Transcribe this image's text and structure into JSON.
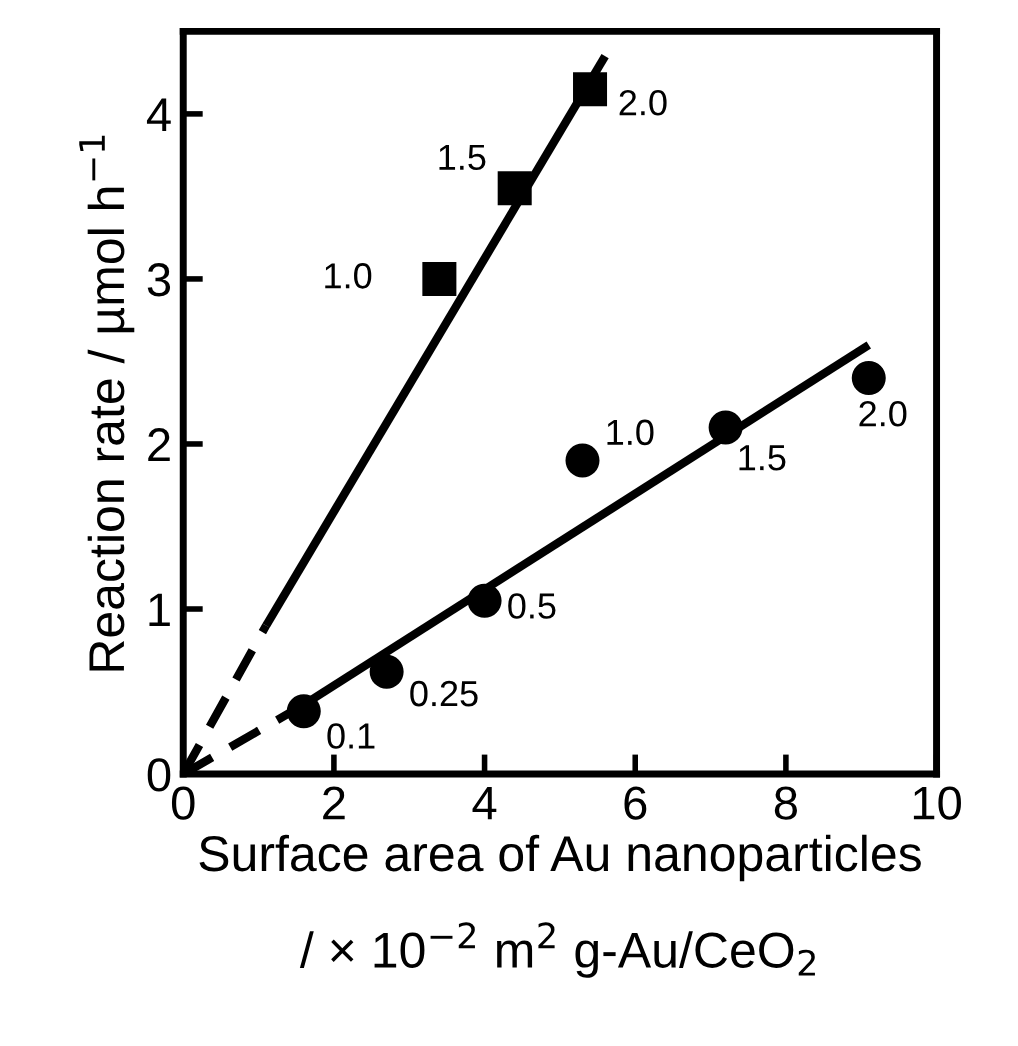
{
  "chart_data": {
    "type": "scatter",
    "xlabel": "Surface area of Au nanoparticles\n/ × 10$^{−2}$ m$^{2}$ g-Au/CeO$_{2}$",
    "ylabel": "Reaction rate / µmol h$^{−1}$",
    "xlim": [
      0,
      10
    ],
    "ylim": [
      0,
      4.5
    ],
    "xticks": [
      0,
      2,
      4,
      6,
      8,
      10
    ],
    "yticks": [
      0,
      1,
      2,
      3,
      4
    ],
    "grid": false,
    "legend": false,
    "series": [
      {
        "marker": "square",
        "color": "#000000",
        "x": [
          3.4,
          4.4,
          5.4
        ],
        "values": [
          3.0,
          3.55,
          4.15
        ]
      },
      {
        "marker": "circle",
        "color": "#000000",
        "x": [
          1.6,
          2.7,
          4.0,
          5.3,
          7.2,
          9.1
        ],
        "values": [
          0.38,
          0.62,
          1.05,
          1.9,
          2.1,
          2.4
        ]
      },
      {
        "type": "line",
        "marker": "none",
        "line_style": "solid",
        "color": "#000000",
        "x": [
          1.1,
          5.6
        ],
        "values": [
          0.9,
          4.35
        ]
      },
      {
        "type": "line",
        "marker": "none",
        "line_style": "dashed",
        "color": "#000000",
        "x": [
          0,
          1.1
        ],
        "values": [
          0,
          0.9
        ]
      },
      {
        "type": "line",
        "marker": "none",
        "line_style": "solid",
        "color": "#000000",
        "x": [
          1.6,
          9.1
        ],
        "values": [
          0.42,
          2.6
        ]
      },
      {
        "type": "line",
        "marker": "none",
        "line_style": "dashed",
        "color": "#000000",
        "x": [
          0,
          1.6
        ],
        "values": [
          0,
          0.42
        ]
      }
    ],
    "annotations": [
      {
        "text": "1.0",
        "x": 3.4,
        "y": 3.0
      },
      {
        "text": "1.5",
        "x": 4.4,
        "y": 3.55
      },
      {
        "text": "2.0",
        "x": 5.4,
        "y": 4.15
      },
      {
        "text": "0.1",
        "x": 1.6,
        "y": 0.38
      },
      {
        "text": "0.25",
        "x": 2.7,
        "y": 0.62
      },
      {
        "text": "0.5",
        "x": 4.0,
        "y": 1.05
      },
      {
        "text": "1.0",
        "x": 5.3,
        "y": 1.9
      },
      {
        "text": "1.5",
        "x": 7.2,
        "y": 2.1
      },
      {
        "text": "2.0",
        "x": 9.1,
        "y": 2.4
      }
    ]
  }
}
